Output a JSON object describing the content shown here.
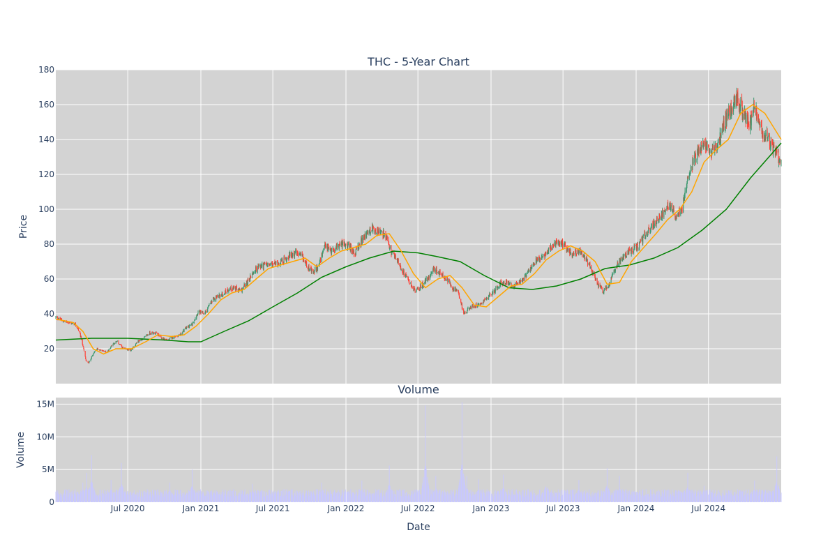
{
  "chart_data": [
    {
      "type": "candlestick",
      "title": "THC - 5-Year Chart",
      "ylabel": "Price",
      "xlabel": "",
      "ylim": [
        0,
        180
      ],
      "yticks": [
        20,
        40,
        60,
        80,
        100,
        120,
        140,
        160,
        180
      ],
      "xlim": [
        "2020-01-02",
        "2024-12-31"
      ],
      "x_tick_labels": [
        {
          "date": "2020-07-01",
          "label": "Jul 2020"
        },
        {
          "date": "2021-01-01",
          "label": "Jan 2021"
        },
        {
          "date": "2021-07-01",
          "label": "Jul 2021"
        },
        {
          "date": "2022-01-01",
          "label": "Jan 2022"
        },
        {
          "date": "2022-07-01",
          "label": "Jul 2022"
        },
        {
          "date": "2023-01-01",
          "label": "Jan 2023"
        },
        {
          "date": "2023-07-01",
          "label": "Jul 2023"
        },
        {
          "date": "2024-01-01",
          "label": "Jan 2024"
        },
        {
          "date": "2024-07-01",
          "label": "Jul 2024"
        }
      ],
      "grid": true,
      "colors": {
        "increasing": "#3d9970",
        "decreasing": "#ff4136",
        "ma_short": "#ffa500",
        "ma_long": "#008000",
        "plot_bg": "#d3d3d3"
      },
      "close_path": [
        [
          "2020-01-02",
          38
        ],
        [
          "2020-01-20",
          36
        ],
        [
          "2020-02-05",
          35
        ],
        [
          "2020-02-20",
          34
        ],
        [
          "2020-03-01",
          30
        ],
        [
          "2020-03-10",
          22
        ],
        [
          "2020-03-18",
          13
        ],
        [
          "2020-03-25",
          12
        ],
        [
          "2020-04-05",
          17
        ],
        [
          "2020-04-15",
          20
        ],
        [
          "2020-04-25",
          19
        ],
        [
          "2020-05-10",
          18
        ],
        [
          "2020-05-25",
          23
        ],
        [
          "2020-06-05",
          24
        ],
        [
          "2020-06-20",
          20
        ],
        [
          "2020-07-10",
          19
        ],
        [
          "2020-07-25",
          24
        ],
        [
          "2020-08-10",
          26
        ],
        [
          "2020-08-25",
          29
        ],
        [
          "2020-09-10",
          29
        ],
        [
          "2020-09-25",
          26
        ],
        [
          "2020-10-10",
          25
        ],
        [
          "2020-10-25",
          27
        ],
        [
          "2020-11-10",
          28
        ],
        [
          "2020-11-25",
          32
        ],
        [
          "2020-12-10",
          34
        ],
        [
          "2020-12-25",
          41
        ],
        [
          "2021-01-10",
          40
        ],
        [
          "2021-01-25",
          46
        ],
        [
          "2021-02-10",
          50
        ],
        [
          "2021-02-25",
          51
        ],
        [
          "2021-03-10",
          54
        ],
        [
          "2021-03-25",
          55
        ],
        [
          "2021-04-10",
          53
        ],
        [
          "2021-04-25",
          57
        ],
        [
          "2021-05-10",
          63
        ],
        [
          "2021-05-25",
          67
        ],
        [
          "2021-06-10",
          68
        ],
        [
          "2021-06-25",
          68
        ],
        [
          "2021-07-10",
          69
        ],
        [
          "2021-07-25",
          70
        ],
        [
          "2021-08-10",
          73
        ],
        [
          "2021-08-25",
          75
        ],
        [
          "2021-09-10",
          73
        ],
        [
          "2021-09-25",
          68
        ],
        [
          "2021-10-10",
          63
        ],
        [
          "2021-10-25",
          68
        ],
        [
          "2021-11-10",
          79
        ],
        [
          "2021-11-25",
          76
        ],
        [
          "2021-12-10",
          79
        ],
        [
          "2021-12-25",
          80
        ],
        [
          "2022-01-10",
          78
        ],
        [
          "2022-01-25",
          75
        ],
        [
          "2022-02-10",
          82
        ],
        [
          "2022-02-25",
          87
        ],
        [
          "2022-03-10",
          89
        ],
        [
          "2022-03-25",
          87
        ],
        [
          "2022-04-10",
          85
        ],
        [
          "2022-04-25",
          75
        ],
        [
          "2022-05-10",
          71
        ],
        [
          "2022-05-25",
          64
        ],
        [
          "2022-06-10",
          58
        ],
        [
          "2022-06-25",
          53
        ],
        [
          "2022-07-10",
          56
        ],
        [
          "2022-07-25",
          60
        ],
        [
          "2022-08-10",
          66
        ],
        [
          "2022-08-25",
          63
        ],
        [
          "2022-09-10",
          60
        ],
        [
          "2022-09-25",
          55
        ],
        [
          "2022-10-10",
          52
        ],
        [
          "2022-10-25",
          40
        ],
        [
          "2022-11-10",
          44
        ],
        [
          "2022-11-25",
          45
        ],
        [
          "2022-12-10",
          47
        ],
        [
          "2022-12-25",
          50
        ],
        [
          "2023-01-10",
          53
        ],
        [
          "2023-01-25",
          58
        ],
        [
          "2023-02-10",
          58
        ],
        [
          "2023-02-25",
          56
        ],
        [
          "2023-03-10",
          57
        ],
        [
          "2023-03-25",
          60
        ],
        [
          "2023-04-10",
          67
        ],
        [
          "2023-04-25",
          71
        ],
        [
          "2023-05-10",
          72
        ],
        [
          "2023-05-25",
          76
        ],
        [
          "2023-06-10",
          80
        ],
        [
          "2023-06-25",
          81
        ],
        [
          "2023-07-10",
          78
        ],
        [
          "2023-07-25",
          74
        ],
        [
          "2023-08-10",
          76
        ],
        [
          "2023-08-25",
          72
        ],
        [
          "2023-09-10",
          66
        ],
        [
          "2023-09-25",
          57
        ],
        [
          "2023-10-10",
          53
        ],
        [
          "2023-10-25",
          56
        ],
        [
          "2023-11-10",
          67
        ],
        [
          "2023-11-25",
          72
        ],
        [
          "2023-12-10",
          75
        ],
        [
          "2023-12-25",
          77
        ],
        [
          "2024-01-10",
          80
        ],
        [
          "2024-01-25",
          86
        ],
        [
          "2024-02-10",
          90
        ],
        [
          "2024-02-25",
          94
        ],
        [
          "2024-03-10",
          98
        ],
        [
          "2024-03-25",
          103
        ],
        [
          "2024-04-10",
          96
        ],
        [
          "2024-04-25",
          100
        ],
        [
          "2024-05-10",
          120
        ],
        [
          "2024-05-25",
          128
        ],
        [
          "2024-06-10",
          135
        ],
        [
          "2024-06-25",
          136
        ],
        [
          "2024-07-10",
          133
        ],
        [
          "2024-07-25",
          137
        ],
        [
          "2024-08-10",
          150
        ],
        [
          "2024-08-25",
          158
        ],
        [
          "2024-09-10",
          163
        ],
        [
          "2024-09-25",
          157
        ],
        [
          "2024-10-10",
          148
        ],
        [
          "2024-10-25",
          160
        ],
        [
          "2024-11-10",
          145
        ],
        [
          "2024-11-25",
          142
        ],
        [
          "2024-12-10",
          135
        ],
        [
          "2024-12-31",
          127
        ]
      ],
      "ma_short_path": [
        [
          "2020-01-02",
          37
        ],
        [
          "2020-02-15",
          35
        ],
        [
          "2020-03-10",
          30
        ],
        [
          "2020-04-05",
          20
        ],
        [
          "2020-05-01",
          17
        ],
        [
          "2020-06-01",
          20
        ],
        [
          "2020-07-10",
          20
        ],
        [
          "2020-08-15",
          24
        ],
        [
          "2020-09-15",
          28
        ],
        [
          "2020-10-20",
          27
        ],
        [
          "2020-11-20",
          28
        ],
        [
          "2020-12-20",
          33
        ],
        [
          "2021-01-20",
          40
        ],
        [
          "2021-02-20",
          48
        ],
        [
          "2021-03-20",
          52
        ],
        [
          "2021-04-20",
          54
        ],
        [
          "2021-05-20",
          60
        ],
        [
          "2021-06-20",
          66
        ],
        [
          "2021-07-20",
          68
        ],
        [
          "2021-08-20",
          70
        ],
        [
          "2021-09-20",
          72
        ],
        [
          "2021-10-20",
          67
        ],
        [
          "2021-11-20",
          72
        ],
        [
          "2021-12-20",
          76
        ],
        [
          "2022-01-20",
          78
        ],
        [
          "2022-02-20",
          80
        ],
        [
          "2022-03-20",
          85
        ],
        [
          "2022-04-20",
          86
        ],
        [
          "2022-05-20",
          76
        ],
        [
          "2022-06-20",
          63
        ],
        [
          "2022-07-20",
          55
        ],
        [
          "2022-08-20",
          60
        ],
        [
          "2022-09-20",
          62
        ],
        [
          "2022-10-20",
          55
        ],
        [
          "2022-11-20",
          45
        ],
        [
          "2022-12-20",
          44
        ],
        [
          "2023-01-20",
          50
        ],
        [
          "2023-02-20",
          56
        ],
        [
          "2023-03-20",
          57
        ],
        [
          "2023-04-20",
          63
        ],
        [
          "2023-05-20",
          71
        ],
        [
          "2023-06-20",
          76
        ],
        [
          "2023-07-20",
          79
        ],
        [
          "2023-08-20",
          76
        ],
        [
          "2023-09-20",
          70
        ],
        [
          "2023-10-20",
          57
        ],
        [
          "2023-11-20",
          58
        ],
        [
          "2023-12-20",
          70
        ],
        [
          "2024-01-20",
          78
        ],
        [
          "2024-02-20",
          86
        ],
        [
          "2024-03-20",
          94
        ],
        [
          "2024-04-20",
          100
        ],
        [
          "2024-05-20",
          110
        ],
        [
          "2024-06-20",
          127
        ],
        [
          "2024-07-20",
          134
        ],
        [
          "2024-08-20",
          140
        ],
        [
          "2024-09-20",
          155
        ],
        [
          "2024-10-20",
          160
        ],
        [
          "2024-11-20",
          155
        ],
        [
          "2024-12-31",
          140
        ]
      ],
      "ma_long_path": [
        [
          "2020-01-02",
          25
        ],
        [
          "2020-04-01",
          26
        ],
        [
          "2020-07-01",
          26
        ],
        [
          "2020-10-01",
          25
        ],
        [
          "2020-12-01",
          24
        ],
        [
          "2021-01-01",
          24
        ],
        [
          "2021-03-01",
          30
        ],
        [
          "2021-05-01",
          36
        ],
        [
          "2021-07-01",
          44
        ],
        [
          "2021-09-01",
          52
        ],
        [
          "2021-11-01",
          61
        ],
        [
          "2022-01-01",
          67
        ],
        [
          "2022-03-01",
          72
        ],
        [
          "2022-05-01",
          76
        ],
        [
          "2022-07-01",
          75
        ],
        [
          "2022-08-15",
          73
        ],
        [
          "2022-10-15",
          70
        ],
        [
          "2022-12-15",
          62
        ],
        [
          "2023-02-15",
          55
        ],
        [
          "2023-04-15",
          54
        ],
        [
          "2023-06-15",
          56
        ],
        [
          "2023-08-15",
          60
        ],
        [
          "2023-10-15",
          66
        ],
        [
          "2023-12-15",
          68
        ],
        [
          "2024-02-15",
          72
        ],
        [
          "2024-04-15",
          78
        ],
        [
          "2024-06-15",
          88
        ],
        [
          "2024-08-15",
          100
        ],
        [
          "2024-10-15",
          118
        ],
        [
          "2024-12-31",
          138
        ]
      ]
    },
    {
      "type": "bar",
      "title": "Volume",
      "xlabel": "Date",
      "ylabel": "Volume",
      "ylim": [
        0,
        16000000
      ],
      "yticks": [
        0,
        5000000,
        10000000,
        15000000
      ],
      "ytick_labels": [
        "0",
        "5M",
        "10M",
        "15M"
      ],
      "x_tick_labels": [
        {
          "date": "2020-07-01",
          "label": "Jul 2020"
        },
        {
          "date": "2021-01-01",
          "label": "Jan 2021"
        },
        {
          "date": "2021-07-01",
          "label": "Jul 2021"
        },
        {
          "date": "2022-01-01",
          "label": "Jan 2022"
        },
        {
          "date": "2022-07-01",
          "label": "Jul 2022"
        },
        {
          "date": "2023-01-01",
          "label": "Jan 2023"
        },
        {
          "date": "2023-07-01",
          "label": "Jul 2023"
        },
        {
          "date": "2024-01-01",
          "label": "Jan 2024"
        },
        {
          "date": "2024-07-01",
          "label": "Jul 2024"
        }
      ],
      "grid": true,
      "colors": {
        "bar": "#c8c8ff",
        "plot_bg": "#d3d3d3"
      },
      "baseline_volume_range": [
        800000,
        2000000
      ],
      "volume_spikes": [
        [
          "2020-03-10",
          3000000
        ],
        [
          "2020-03-20",
          4500000
        ],
        [
          "2020-04-01",
          7200000
        ],
        [
          "2020-05-20",
          3400000
        ],
        [
          "2020-06-15",
          6000000
        ],
        [
          "2020-10-15",
          3000000
        ],
        [
          "2020-12-10",
          5000000
        ],
        [
          "2021-05-10",
          2800000
        ],
        [
          "2021-11-01",
          3000000
        ],
        [
          "2022-02-10",
          3300000
        ],
        [
          "2022-04-20",
          5600000
        ],
        [
          "2022-07-20",
          14800000
        ],
        [
          "2022-08-15",
          4000000
        ],
        [
          "2022-10-20",
          15300000
        ],
        [
          "2022-11-01",
          4000000
        ],
        [
          "2022-12-01",
          3500000
        ],
        [
          "2023-02-01",
          4200000
        ],
        [
          "2023-05-20",
          5000000
        ],
        [
          "2023-08-10",
          3400000
        ],
        [
          "2023-10-20",
          5200000
        ],
        [
          "2023-11-20",
          4000000
        ],
        [
          "2024-04-20",
          3000000
        ],
        [
          "2024-05-10",
          4500000
        ],
        [
          "2024-06-20",
          2500000
        ],
        [
          "2024-10-25",
          3300000
        ],
        [
          "2024-12-20",
          7000000
        ]
      ]
    }
  ]
}
